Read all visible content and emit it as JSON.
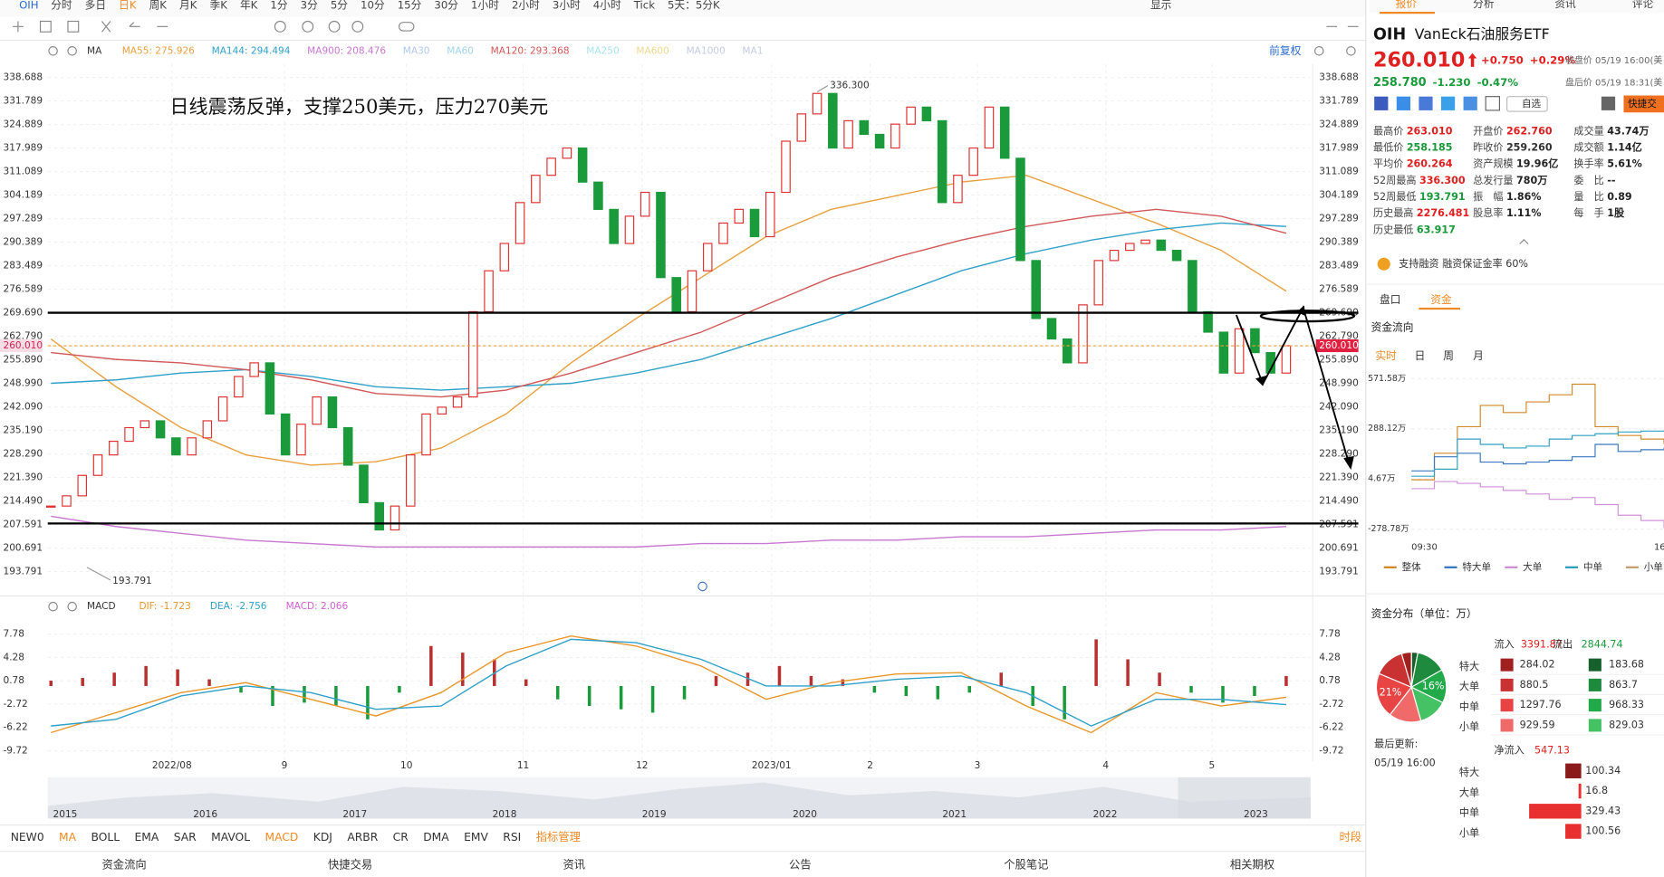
{
  "toolbar": {
    "symbol": "OIH",
    "periods": [
      "分时",
      "多日",
      "日K",
      "周K",
      "月K",
      "季K",
      "年K",
      "1分",
      "3分",
      "5分",
      "10分",
      "15分",
      "30分",
      "1小时",
      "2小时",
      "3小时",
      "4小时",
      "Tick",
      "5天：5分K"
    ],
    "active": "日K",
    "display": "显示"
  },
  "chart_data": {
    "type": "candlestick",
    "annotation": "日线震荡反弹，支撑250美元，压力270美元",
    "ma_label": "MA",
    "adjust": "前复权",
    "up_color": "#e03030",
    "down_color": "#1a9a3a",
    "closes": [
      213,
      216,
      222,
      228,
      232,
      236,
      238,
      233,
      228,
      233,
      238,
      245,
      251,
      255,
      240,
      228,
      237,
      245,
      236,
      225,
      214,
      206,
      213,
      228,
      240,
      242,
      245,
      270,
      282,
      290,
      302,
      310,
      315,
      318,
      308,
      300,
      290,
      298,
      305,
      280,
      270,
      282,
      290,
      296,
      300,
      292,
      305,
      320,
      328,
      334,
      318,
      326,
      322,
      318,
      325,
      330,
      326,
      302,
      310,
      318,
      330,
      315,
      285,
      268,
      262,
      255,
      272,
      285,
      288,
      290,
      291,
      288,
      285,
      270,
      264,
      252,
      265,
      258,
      252,
      260.01
    ],
    "ylim": [
      193.791,
      338.688
    ],
    "yticks": [
      338.688,
      331.789,
      324.889,
      317.989,
      311.089,
      304.189,
      297.289,
      290.389,
      283.489,
      276.589,
      {
        "value": 269.69,
        "label": "269.690"
      },
      {
        "value": 262.79,
        "label": "262.790"
      },
      {
        "value": 255.89,
        "label": "255.890"
      },
      {
        "value": 248.99,
        "label": "248.990"
      },
      {
        "value": 242.09,
        "label": "242.090"
      },
      {
        "value": 235.19,
        "label": "235.190"
      },
      {
        "value": 228.29,
        "label": "228.290"
      },
      {
        "value": 221.39,
        "label": "221.390"
      },
      {
        "value": 214.49,
        "label": "214.490"
      },
      207.591,
      200.691,
      193.791
    ],
    "last_price": {
      "value": 260.01,
      "label": "260.010"
    },
    "high_label": {
      "value": 336.3,
      "label": "336.300"
    },
    "low_label": 193.791,
    "levels": [
      269.69,
      207.9
    ],
    "months": [
      "2022/08",
      "9",
      "10",
      "11",
      "12",
      "2023/01",
      "2",
      "3",
      "4",
      "5"
    ],
    "ma_series": [
      {
        "name": "MA55",
        "label": "MA55: 275.926",
        "color": "#e8a040",
        "values": [
          262,
          248,
          236,
          228,
          225,
          226,
          230,
          240,
          255,
          268,
          280,
          292,
          300,
          304,
          308,
          310,
          303,
          296,
          288,
          276
        ]
      },
      {
        "name": "MA144",
        "label": "MA144: 294.494",
        "color": "#30a0c8",
        "values": [
          249,
          250,
          252,
          253,
          251,
          248,
          247,
          248,
          249,
          252,
          256,
          262,
          268,
          275,
          282,
          287,
          291,
          294,
          296,
          295
        ]
      },
      {
        "name": "MA900",
        "label": "MA900: 208.476",
        "color": "#c878d0",
        "values": [
          210,
          207,
          205,
          203,
          202,
          201,
          201,
          201,
          201,
          201,
          202,
          202,
          203,
          203,
          204,
          204,
          205,
          206,
          206,
          207
        ]
      },
      {
        "name": "MA120",
        "label": "MA120: 293.368",
        "color": "#d05858",
        "values": [
          258,
          256,
          255,
          253,
          250,
          246,
          245,
          247,
          252,
          258,
          264,
          272,
          280,
          286,
          291,
          295,
          298,
          300,
          298,
          293
        ]
      }
    ],
    "ma_inactive": [
      {
        "name": "MA30",
        "color": "#b0c8f0"
      },
      {
        "name": "MA60",
        "color": "#a0d4f0"
      },
      {
        "name": "MA250",
        "color": "#a8e4f0"
      },
      {
        "name": "MA600",
        "color": "#f0d890"
      },
      {
        "name": "MA1000",
        "color": "#c4cce0"
      },
      {
        "name": "MA1",
        "color": "#c4cce0"
      }
    ],
    "macd": {
      "name": "MACD",
      "ylim": [
        -9.72,
        7.78
      ],
      "yticks": [
        7.78,
        4.28,
        0.78,
        -2.72,
        -6.22,
        -9.72
      ],
      "hist_label": "MACD: 2.066",
      "hist_label_color": "#d060d0",
      "up_color": "#b83030",
      "down_color": "#1a9a3a",
      "hist": [
        0.8,
        1.2,
        2,
        3,
        2.5,
        1,
        -1,
        -3,
        -2.5,
        -3,
        -5,
        -1,
        6,
        5,
        4,
        1,
        -2,
        -3,
        -3.5,
        -4,
        -2,
        1.5,
        2,
        3,
        1.5,
        1,
        -1,
        -1.5,
        -2,
        -1,
        2,
        -3,
        -5,
        7,
        4,
        2,
        -1,
        -2.5,
        -1.5,
        1.5
      ],
      "lines": [
        {
          "label": "DIF: -1.723",
          "color": "#e8962a",
          "values": [
            -7,
            -4,
            -1,
            0.5,
            -2,
            -4.5,
            -1,
            5,
            7.5,
            6,
            3,
            -2,
            0.5,
            1.8,
            2,
            -3,
            -7,
            -1,
            -3,
            -1.7
          ]
        },
        {
          "label": "DEA: -2.756",
          "color": "#30a0c8",
          "values": [
            -6,
            -5,
            -1.5,
            0,
            -1,
            -3.5,
            -3,
            3,
            7,
            6.5,
            4,
            0,
            0,
            1,
            1.5,
            -1,
            -6,
            -2,
            -2,
            -2.8
          ]
        }
      ]
    },
    "years": [
      "2015",
      "2016",
      "2017",
      "2018",
      "2019",
      "2020",
      "2021",
      "2022",
      "2023"
    ]
  },
  "indicators": [
    "NEW0",
    "MA",
    "BOLL",
    "EMA",
    "SAR",
    "MAVOL",
    "MACD",
    "KDJ",
    "ARBR",
    "CR",
    "DMA",
    "EMV",
    "RSI",
    "指标管理"
  ],
  "active_indicators": [
    "MA",
    "MACD",
    "指标管理"
  ],
  "period_button": "时段",
  "bottom_tabs": [
    "资金流向",
    "快捷交易",
    "资讯",
    "公告",
    "个股笔记",
    "相关期权"
  ],
  "quote": {
    "tabs": [
      "报价",
      "分析",
      "资讯",
      "评论"
    ],
    "symbol": "OIH",
    "name": "VanEck石油服务ETF",
    "price": "260.010",
    "change": "+0.750",
    "change_pct": "+0.29%",
    "close_time": "收盘价 05/19 16:00(美",
    "after_price": "258.780",
    "after_change": "-1.230",
    "after_pct": "-0.47%",
    "after_time": "盘后价 05/19 18:31(美",
    "watch": "自选",
    "trade": "快捷交",
    "stats": [
      [
        {
          "label": "最高价",
          "value": "263.010",
          "color": "#e02020"
        },
        {
          "label": "最低价",
          "value": "258.185",
          "color": "#1a9a3a"
        },
        {
          "label": "平均价",
          "value": "260.264",
          "color": "#e02020"
        },
        {
          "label": "52周最高",
          "value": "336.300",
          "color": "#e02020"
        },
        {
          "label": "52周最低",
          "value": "193.791",
          "color": "#1a9a3a"
        },
        {
          "label": "历史最高",
          "value": "2276.481",
          "color": "#e02020"
        },
        {
          "label": "历史最低",
          "value": "63.917",
          "color": "#1a9a3a"
        }
      ],
      [
        {
          "label": "开盘价",
          "value": "262.760",
          "color": "#e02020"
        },
        {
          "label": "昨收价",
          "value": "259.260",
          "color": "#333333"
        },
        {
          "label": "资产规模",
          "value": "19.96亿",
          "color": "#222222"
        },
        {
          "label": "总发行量",
          "value": "780万",
          "color": "#222222"
        },
        {
          "label": "振　幅",
          "value": "1.86%",
          "color": "#222222"
        },
        {
          "label": "股息率",
          "value": "1.11%",
          "color": "#222222"
        }
      ],
      [
        {
          "label": "成交量",
          "value": "43.74万",
          "color": "#222222"
        },
        {
          "label": "成交额",
          "value": "1.14亿",
          "color": "#222222"
        },
        {
          "label": "换手率",
          "value": "5.61%",
          "color": "#222222"
        },
        {
          "label": "委　比",
          "value": "--",
          "color": "#222222"
        },
        {
          "label": "量　比",
          "value": "0.89",
          "color": "#222222"
        },
        {
          "label": "每　手",
          "value": "1股",
          "color": "#222222"
        }
      ]
    ],
    "margin": "支持融资 融资保证金率 60%",
    "sub_tabs": [
      "盘口",
      "资金"
    ],
    "flow_title": "资金流向",
    "flow_tabs": [
      "实时",
      "日",
      "周",
      "月"
    ],
    "flow_chart": {
      "type": "line",
      "x": [
        "09:30",
        null,
        null,
        null,
        null,
        null,
        null,
        null,
        null,
        null,
        null,
        "16"
      ],
      "ylim": [
        -278.78,
        571.58
      ],
      "yticks": [
        {
          "value": 571.58,
          "label": "571.58万"
        },
        {
          "value": 288.12,
          "label": "288.12万"
        },
        {
          "value": 4.67,
          "label": "4.67万"
        },
        {
          "value": -278.78,
          "label": "-278.78万"
        }
      ],
      "series": [
        {
          "name": "整体",
          "color": "#d08a2a",
          "values": [
            0,
            150,
            300,
            420,
            380,
            440,
            480,
            540,
            300,
            250,
            230,
            200
          ]
        },
        {
          "name": "特大单",
          "color": "#3a78c0",
          "values": [
            50,
            130,
            150,
            100,
            90,
            100,
            110,
            130,
            200,
            160,
            170,
            180
          ]
        },
        {
          "name": "大单",
          "color": "#d090d8",
          "values": [
            -50,
            -10,
            -20,
            -40,
            -60,
            -80,
            -110,
            -100,
            -140,
            -200,
            -230,
            -270
          ]
        },
        {
          "name": "中单",
          "color": "#30a0c0",
          "values": [
            20,
            60,
            230,
            200,
            180,
            190,
            230,
            250,
            260,
            270,
            275,
            280
          ]
        },
        {
          "name": "小单",
          "color": "#c8a070"
        }
      ]
    },
    "dist_title": "资金分布（单位：万）",
    "inflow_label": "流入",
    "inflow": 3391.87,
    "outflow_label": "流出",
    "outflow": 2844.74,
    "dist_rows": [
      {
        "name": "特大",
        "in": 284.02,
        "out": 183.68,
        "in_color": "#a02020",
        "out_color": "#17602c"
      },
      {
        "name": "大单",
        "in": 880.5,
        "out": 863.7,
        "in_color": "#c83232",
        "out_color": "#1e8a3e"
      },
      {
        "name": "中单",
        "in": 1297.76,
        "out": 968.33,
        "in_color": "#e84444",
        "out_color": "#22aa4a",
        "in_label": "21%",
        "out_label": "16%"
      },
      {
        "name": "小单",
        "in": 929.59,
        "out": 829.03,
        "in_color": "#f06a6a",
        "out_color": "#44c264"
      }
    ],
    "updated_label": "最后更新:",
    "updated": "05/19 16:00",
    "net_label": "净流入",
    "net": 547.13,
    "net_rows": [
      {
        "name": "特大",
        "value": 100.34,
        "color": "#8b1a1a"
      },
      {
        "name": "大单",
        "value": 16.8,
        "color": "#e83030"
      },
      {
        "name": "中单",
        "value": 329.43,
        "color": "#e83030"
      },
      {
        "name": "小单",
        "value": 100.56,
        "color": "#e83030"
      }
    ]
  }
}
